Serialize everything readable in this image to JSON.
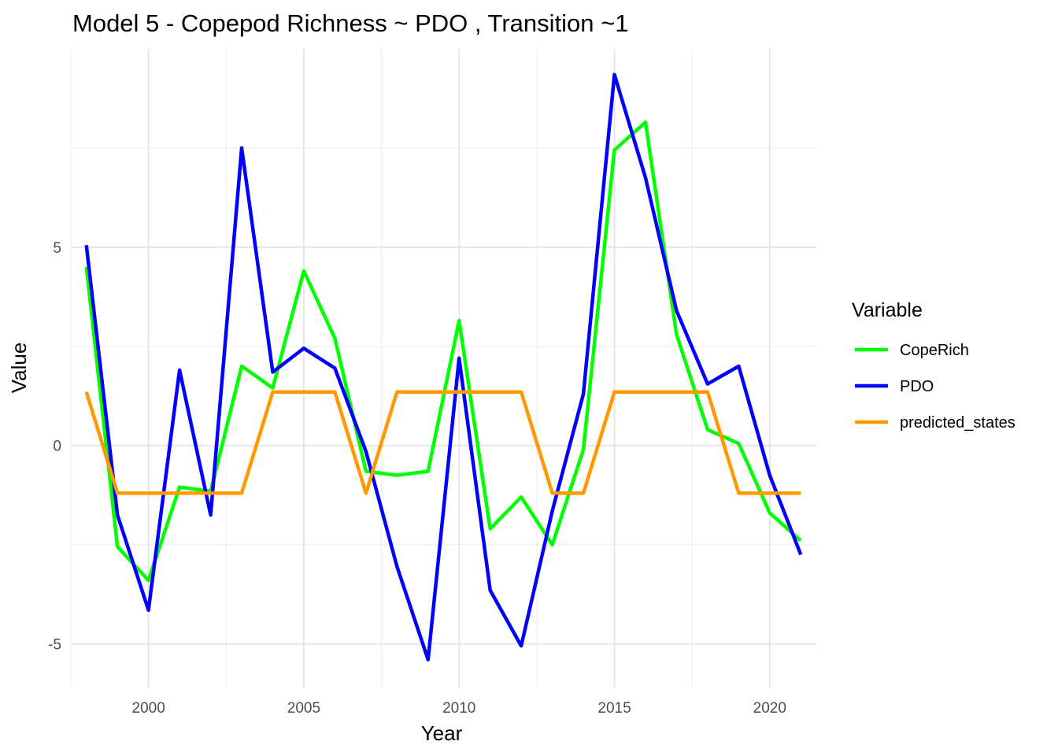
{
  "chart_data": {
    "type": "line",
    "title": "Model 5 - Copepod Richness ~ PDO , Transition ~1",
    "xlabel": "Year",
    "ylabel": "Value",
    "xlim": [
      1997.5,
      2021.5
    ],
    "ylim": [
      -6.1,
      10.0
    ],
    "x_ticks": [
      2000,
      2005,
      2010,
      2015,
      2020
    ],
    "y_ticks": [
      -5,
      0,
      5
    ],
    "grid": true,
    "legend": {
      "title": "Variable",
      "position": "right"
    },
    "x": [
      1998,
      1999,
      2000,
      2001,
      2002,
      2003,
      2004,
      2005,
      2006,
      2007,
      2008,
      2009,
      2010,
      2011,
      2012,
      2013,
      2014,
      2015,
      2016,
      2017,
      2018,
      2019,
      2020,
      2021
    ],
    "series": [
      {
        "name": "CopeRich",
        "color": "#00ff00",
        "values": [
          4.5,
          -2.55,
          -3.4,
          -1.05,
          -1.15,
          2.0,
          1.45,
          4.4,
          2.7,
          -0.65,
          -0.75,
          -0.65,
          3.15,
          -2.1,
          -1.3,
          -2.5,
          -0.1,
          7.45,
          8.15,
          2.8,
          0.4,
          0.05,
          -1.7,
          -2.4
        ]
      },
      {
        "name": "PDO",
        "color": "#0000ff",
        "values": [
          5.05,
          -1.75,
          -4.15,
          1.9,
          -1.75,
          7.5,
          1.85,
          2.45,
          1.95,
          -0.15,
          -3.05,
          -5.4,
          2.2,
          -3.65,
          -5.05,
          -1.65,
          1.3,
          9.35,
          6.75,
          3.4,
          1.55,
          2.0,
          -0.75,
          -2.75
        ]
      },
      {
        "name": "predicted_states",
        "color": "#ff9900",
        "values": [
          1.35,
          -1.2,
          -1.2,
          -1.2,
          -1.2,
          -1.2,
          1.35,
          1.35,
          1.35,
          -1.2,
          1.35,
          1.35,
          1.35,
          1.35,
          1.35,
          -1.2,
          -1.2,
          1.35,
          1.35,
          1.35,
          1.35,
          -1.2,
          -1.2,
          -1.2
        ]
      }
    ]
  }
}
